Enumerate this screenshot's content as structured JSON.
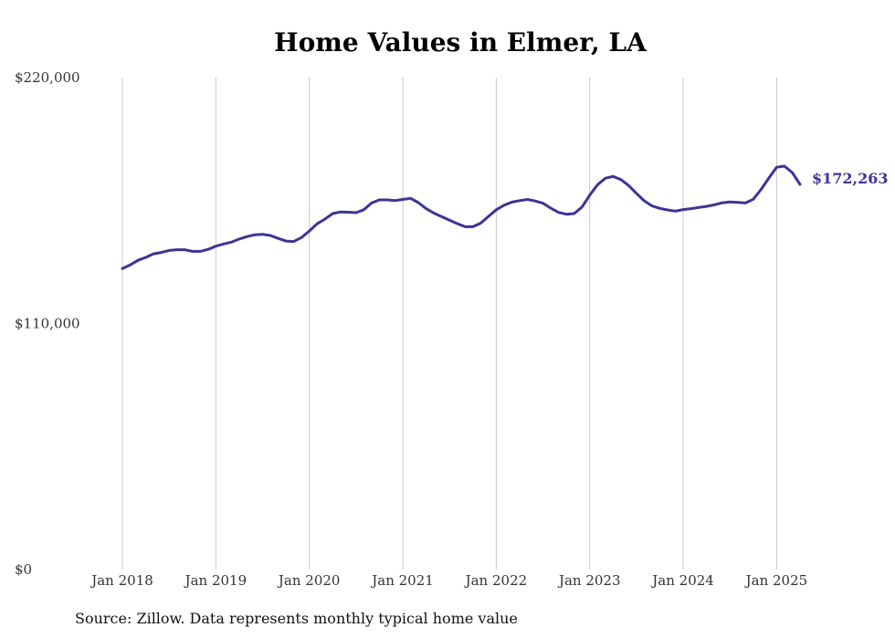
{
  "chart_data": {
    "type": "line",
    "title": "Home Values in Elmer, LA",
    "source": "Source: Zillow. Data represents monthly typical home value",
    "y_ticks": [
      "$220,000",
      "$110,000",
      "$0"
    ],
    "y_tick_values": [
      220000,
      110000,
      0
    ],
    "ylim": [
      0,
      220000
    ],
    "x_ticks": [
      "Jan 2018",
      "Jan 2019",
      "Jan 2020",
      "Jan 2021",
      "Jan 2022",
      "Jan 2023",
      "Jan 2024",
      "Jan 2025"
    ],
    "x_tick_values": [
      "2018-01",
      "2019-01",
      "2020-01",
      "2021-01",
      "2022-01",
      "2023-01",
      "2024-01",
      "2025-01"
    ],
    "xlim": [
      "2018-01",
      "2025-04"
    ],
    "grid": "vertical",
    "series": [
      {
        "color": "#3b3596",
        "end_label": "$172,263",
        "x": [
          "2018-01",
          "2018-02",
          "2018-03",
          "2018-04",
          "2018-05",
          "2018-06",
          "2018-07",
          "2018-08",
          "2018-09",
          "2018-10",
          "2018-11",
          "2018-12",
          "2019-01",
          "2019-02",
          "2019-03",
          "2019-04",
          "2019-05",
          "2019-06",
          "2019-07",
          "2019-08",
          "2019-09",
          "2019-10",
          "2019-11",
          "2019-12",
          "2020-01",
          "2020-02",
          "2020-03",
          "2020-04",
          "2020-05",
          "2020-06",
          "2020-07",
          "2020-08",
          "2020-09",
          "2020-10",
          "2020-11",
          "2020-12",
          "2021-01",
          "2021-02",
          "2021-03",
          "2021-04",
          "2021-05",
          "2021-06",
          "2021-07",
          "2021-08",
          "2021-09",
          "2021-10",
          "2021-11",
          "2021-12",
          "2022-01",
          "2022-02",
          "2022-03",
          "2022-04",
          "2022-05",
          "2022-06",
          "2022-07",
          "2022-08",
          "2022-09",
          "2022-10",
          "2022-11",
          "2022-12",
          "2023-01",
          "2023-02",
          "2023-03",
          "2023-04",
          "2023-05",
          "2023-06",
          "2023-07",
          "2023-08",
          "2023-09",
          "2023-10",
          "2023-11",
          "2023-12",
          "2024-01",
          "2024-02",
          "2024-03",
          "2024-04",
          "2024-05",
          "2024-06",
          "2024-07",
          "2024-08",
          "2024-09",
          "2024-10",
          "2024-11",
          "2024-12",
          "2025-01",
          "2025-02",
          "2025-03",
          "2025-04"
        ],
        "values": [
          134600,
          136200,
          138300,
          139600,
          141200,
          141800,
          142700,
          143000,
          143000,
          142300,
          142300,
          143200,
          144600,
          145600,
          146400,
          147800,
          148900,
          149700,
          149900,
          149400,
          148100,
          146900,
          146700,
          148500,
          151400,
          154600,
          156700,
          159200,
          159900,
          159800,
          159600,
          160900,
          163900,
          165300,
          165300,
          165000,
          165500,
          166000,
          164100,
          161400,
          159400,
          157800,
          156200,
          154700,
          153300,
          153300,
          154900,
          157900,
          160900,
          162900,
          164300,
          165000,
          165500,
          164800,
          163800,
          161600,
          159700,
          158900,
          159200,
          162100,
          167400,
          172100,
          175000,
          175800,
          174400,
          171700,
          168200,
          164900,
          162600,
          161500,
          160800,
          160300,
          161000,
          161400,
          161900,
          162400,
          163100,
          164000,
          164400,
          164200,
          163900,
          165600,
          170000,
          175100,
          179900,
          180400,
          177500,
          172263
        ]
      }
    ]
  }
}
